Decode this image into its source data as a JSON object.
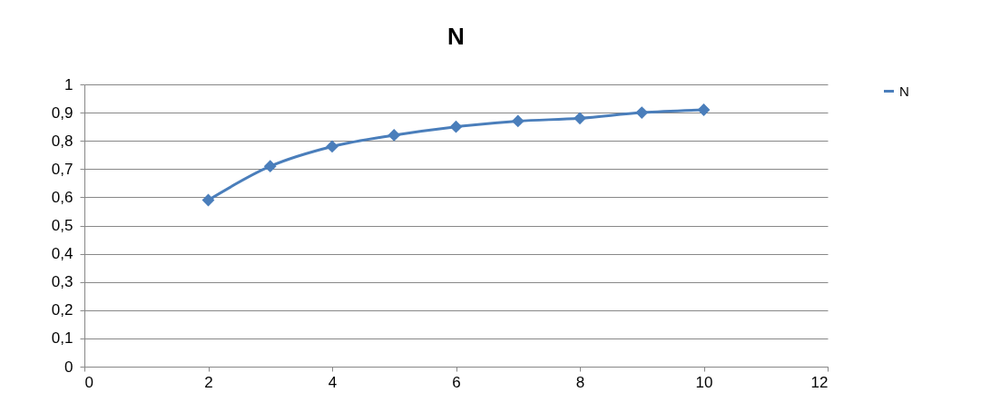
{
  "chart_data": {
    "type": "line",
    "title": "N",
    "x": [
      2,
      3,
      4,
      5,
      6,
      7,
      8,
      9,
      10
    ],
    "series": [
      {
        "name": "N",
        "color": "#4a7ebb",
        "values": [
          0.59,
          0.71,
          0.78,
          0.82,
          0.85,
          0.87,
          0.88,
          0.9,
          0.91
        ]
      }
    ],
    "xlim": [
      0,
      12
    ],
    "xticks": [
      0,
      2,
      4,
      6,
      8,
      10,
      12
    ],
    "ylim": [
      0,
      1
    ],
    "yticks": [
      0,
      {
        "value": 0.1,
        "label": "0,1"
      },
      {
        "value": 0.2,
        "label": "0,2"
      },
      {
        "value": 0.3,
        "label": "0,3"
      },
      {
        "value": 0.4,
        "label": "0,4"
      },
      {
        "value": 0.5,
        "label": "0,5"
      },
      {
        "value": 0.6,
        "label": "0,6"
      },
      {
        "value": 0.7,
        "label": "0,7"
      },
      {
        "value": 0.8,
        "label": "0,8"
      },
      {
        "value": 0.9,
        "label": "0,9"
      },
      1
    ],
    "grid": "y",
    "legend": "right",
    "marker": "diamond",
    "line_style": "solid"
  }
}
